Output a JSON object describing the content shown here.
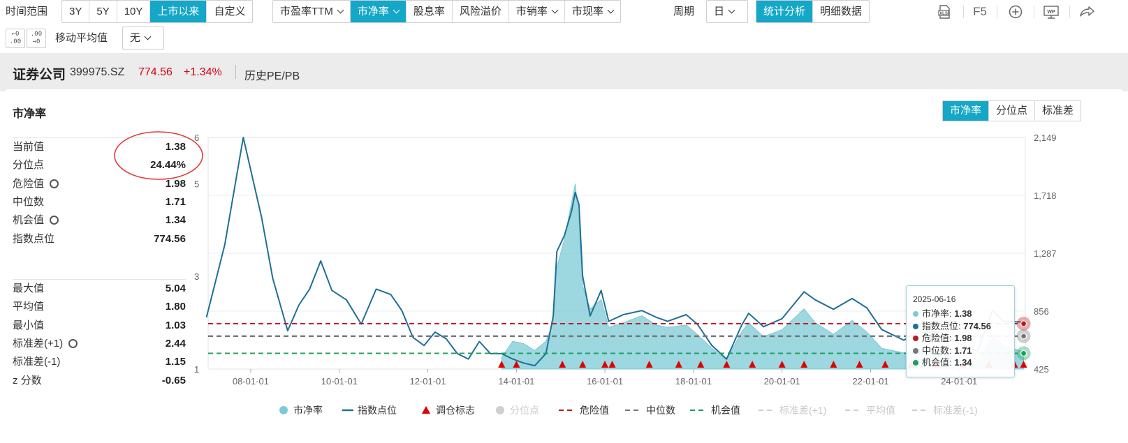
{
  "toolbar": {
    "range_label": "时间范围",
    "range_buttons": [
      "3Y",
      "5Y",
      "10Y",
      "上市以来",
      "自定义"
    ],
    "range_active": "上市以来",
    "metric_buttons": [
      "市盈率TTM",
      "市净率",
      "股息率",
      "风险溢价",
      "市销率",
      "市现率"
    ],
    "metric_active": "市净率",
    "period_label": "周期",
    "period_value": "日",
    "view_buttons": [
      "统计分析",
      "明细数据"
    ],
    "view_active": "统计分析",
    "right_icons": [
      "xls-export-icon",
      "f5-refresh",
      "add-circle-icon",
      "wp-icon",
      "share-icon"
    ],
    "f5_label": "F5",
    "wp_label": "WP",
    "ma_label": "移动平均值",
    "ma_value": "无"
  },
  "header": {
    "name": "证券公司",
    "code": "399975.SZ",
    "price": "774.56",
    "change": "+1.34%",
    "link": "历史PE/PB"
  },
  "panel": {
    "title": "市净率",
    "tabs": [
      "市净率",
      "分位点",
      "标准差"
    ],
    "tab_active": "市净率"
  },
  "stats_top": [
    {
      "label": "当前值",
      "value": "1.38",
      "gear": false
    },
    {
      "label": "分位点",
      "value": "24.44%",
      "gear": false
    },
    {
      "label": "危险值",
      "value": "1.98",
      "gear": true
    },
    {
      "label": "中位数",
      "value": "1.71",
      "gear": false
    },
    {
      "label": "机会值",
      "value": "1.34",
      "gear": true
    },
    {
      "label": "指数点位",
      "value": "774.56",
      "gear": false
    }
  ],
  "stats_bottom": [
    {
      "label": "最大值",
      "value": "5.04",
      "gear": false
    },
    {
      "label": "平均值",
      "value": "1.80",
      "gear": false
    },
    {
      "label": "最小值",
      "value": "1.03",
      "gear": false
    },
    {
      "label": "标准差(+1)",
      "value": "2.44",
      "gear": true
    },
    {
      "label": "标准差(-1)",
      "value": "1.15",
      "gear": false
    },
    {
      "label": "z 分数",
      "value": "-0.65",
      "gear": false
    }
  ],
  "tooltip": {
    "date": "2025-06-16",
    "rows": [
      {
        "label": "市净率: ",
        "value": "1.38",
        "color": "#7ccad6"
      },
      {
        "label": "指数点位: ",
        "value": "774.56",
        "color": "#1f6f97"
      },
      {
        "label": "危险值: ",
        "value": "1.98",
        "color": "#c0161c"
      },
      {
        "label": "中位数: ",
        "value": "1.71",
        "color": "#777777"
      },
      {
        "label": "机会值: ",
        "value": "1.34",
        "color": "#18a05a"
      }
    ]
  },
  "legend": [
    {
      "label": "市净率",
      "kind": "dot",
      "color": "#7ccad6",
      "enabled": true
    },
    {
      "label": "指数点位",
      "kind": "line",
      "color": "#1f6f97",
      "enabled": true
    },
    {
      "label": "调仓标志",
      "kind": "triangle",
      "color": "#e00000",
      "enabled": true
    },
    {
      "label": "分位点",
      "kind": "dot",
      "color": "#c8c8c8",
      "enabled": false
    },
    {
      "label": "危险值",
      "kind": "dash",
      "color": "#c0161c",
      "enabled": true
    },
    {
      "label": "中位数",
      "kind": "dash",
      "color": "#777777",
      "enabled": true
    },
    {
      "label": "机会值",
      "kind": "dash",
      "color": "#18a05a",
      "enabled": true
    },
    {
      "label": "标准差(+1)",
      "kind": "dash",
      "color": "#d0d0d0",
      "enabled": false
    },
    {
      "label": "平均值",
      "kind": "dash",
      "color": "#d0d0d0",
      "enabled": false
    },
    {
      "label": "标准差(-1)",
      "kind": "dash",
      "color": "#d0d0d0",
      "enabled": false
    }
  ],
  "colors": {
    "accent": "#14a7c7",
    "price_red": "#d9000f",
    "pb_fill": "#7ccad6",
    "index_line": "#1f6f97",
    "danger": "#c0161c",
    "median": "#777777",
    "opportunity": "#18a05a",
    "signal": "#e00000"
  },
  "chart_data": {
    "type": "area",
    "title": "",
    "x_tick_labels": [
      "08-01-01",
      "10-01-01",
      "12-01-01",
      "14-01-01",
      "16-01-01",
      "18-01-01",
      "20-01-01",
      "22-01-01",
      "24-01-01"
    ],
    "y_left_ticks": [
      "1",
      "3",
      "5",
      "6"
    ],
    "y_right_ticks": [
      "425",
      "856",
      "1,287",
      "1,718",
      "2,149"
    ],
    "ylim_left": [
      1,
      6
    ],
    "ylim_right": [
      425,
      2149
    ],
    "reference_lines": {
      "危险值": 1.98,
      "中位数": 1.71,
      "机会值": 1.34
    },
    "pb_series": {
      "name": "市净率",
      "points": [
        [
          "2013-09-01",
          1.25
        ],
        [
          "2013-12-01",
          1.6
        ],
        [
          "2014-03-01",
          1.55
        ],
        [
          "2014-06-01",
          1.4
        ],
        [
          "2014-09-01",
          1.6
        ],
        [
          "2014-11-01",
          2.0
        ],
        [
          "2014-12-01",
          3.2
        ],
        [
          "2015-02-01",
          3.8
        ],
        [
          "2015-04-01",
          4.6
        ],
        [
          "2015-05-01",
          5.0
        ],
        [
          "2015-06-01",
          4.2
        ],
        [
          "2015-07-01",
          2.8
        ],
        [
          "2015-09-01",
          2.3
        ],
        [
          "2015-12-01",
          2.5
        ],
        [
          "2016-02-01",
          1.9
        ],
        [
          "2016-06-01",
          2.0
        ],
        [
          "2016-11-01",
          2.15
        ],
        [
          "2017-03-01",
          1.95
        ],
        [
          "2017-06-01",
          1.9
        ],
        [
          "2017-11-01",
          1.95
        ],
        [
          "2018-02-01",
          1.75
        ],
        [
          "2018-06-01",
          1.45
        ],
        [
          "2018-10-01",
          1.2
        ],
        [
          "2019-02-01",
          1.8
        ],
        [
          "2019-04-01",
          2.0
        ],
        [
          "2019-08-01",
          1.7
        ],
        [
          "2020-01-01",
          1.85
        ],
        [
          "2020-07-01",
          2.3
        ],
        [
          "2020-10-01",
          2.0
        ],
        [
          "2021-03-01",
          1.75
        ],
        [
          "2021-08-01",
          2.05
        ],
        [
          "2021-12-01",
          1.8
        ],
        [
          "2022-04-01",
          1.45
        ],
        [
          "2022-10-01",
          1.35
        ],
        [
          "2023-02-01",
          1.45
        ],
        [
          "2023-08-01",
          1.4
        ],
        [
          "2024-02-01",
          1.15
        ],
        [
          "2024-06-01",
          1.15
        ],
        [
          "2024-10-01",
          1.75
        ],
        [
          "2025-01-01",
          1.5
        ],
        [
          "2025-06-16",
          1.38
        ]
      ]
    },
    "index_series": {
      "name": "指数点位",
      "points": [
        [
          "2007-01-01",
          810
        ],
        [
          "2007-06-01",
          1350
        ],
        [
          "2007-11-01",
          2149
        ],
        [
          "2008-04-01",
          1550
        ],
        [
          "2008-07-01",
          1100
        ],
        [
          "2008-11-01",
          710
        ],
        [
          "2009-02-01",
          900
        ],
        [
          "2009-05-01",
          1020
        ],
        [
          "2009-08-01",
          1230
        ],
        [
          "2009-11-01",
          1010
        ],
        [
          "2010-03-01",
          940
        ],
        [
          "2010-07-01",
          760
        ],
        [
          "2010-11-01",
          1020
        ],
        [
          "2011-03-01",
          980
        ],
        [
          "2011-06-01",
          860
        ],
        [
          "2011-09-01",
          660
        ],
        [
          "2011-12-01",
          600
        ],
        [
          "2012-03-01",
          700
        ],
        [
          "2012-06-01",
          650
        ],
        [
          "2012-09-01",
          540
        ],
        [
          "2012-12-01",
          500
        ],
        [
          "2013-03-01",
          630
        ],
        [
          "2013-06-01",
          540
        ],
        [
          "2013-09-01",
          540
        ],
        [
          "2013-12-01",
          500
        ],
        [
          "2014-03-01",
          470
        ],
        [
          "2014-06-01",
          450
        ],
        [
          "2014-09-01",
          540
        ],
        [
          "2014-11-01",
          820
        ],
        [
          "2014-12-01",
          1300
        ],
        [
          "2015-02-01",
          1420
        ],
        [
          "2015-04-01",
          1600
        ],
        [
          "2015-05-01",
          1740
        ],
        [
          "2015-06-01",
          1650
        ],
        [
          "2015-07-01",
          1120
        ],
        [
          "2015-09-01",
          820
        ],
        [
          "2015-12-01",
          1010
        ],
        [
          "2016-02-01",
          780
        ],
        [
          "2016-06-01",
          830
        ],
        [
          "2016-11-01",
          860
        ],
        [
          "2017-03-01",
          810
        ],
        [
          "2017-06-01",
          780
        ],
        [
          "2017-11-01",
          830
        ],
        [
          "2018-02-01",
          760
        ],
        [
          "2018-06-01",
          600
        ],
        [
          "2018-10-01",
          500
        ],
        [
          "2019-02-01",
          750
        ],
        [
          "2019-04-01",
          840
        ],
        [
          "2019-08-01",
          740
        ],
        [
          "2020-01-01",
          800
        ],
        [
          "2020-07-01",
          1000
        ],
        [
          "2020-10-01",
          940
        ],
        [
          "2021-03-01",
          870
        ],
        [
          "2021-08-01",
          950
        ],
        [
          "2021-12-01",
          880
        ],
        [
          "2022-04-01",
          720
        ],
        [
          "2022-10-01",
          640
        ],
        [
          "2023-02-01",
          700
        ],
        [
          "2023-08-01",
          700
        ],
        [
          "2024-02-01",
          600
        ],
        [
          "2024-06-01",
          560
        ],
        [
          "2024-10-01",
          860
        ],
        [
          "2025-01-01",
          780
        ],
        [
          "2025-06-16",
          774.56
        ]
      ]
    },
    "signal_marker_dates": [
      "2013-09-01",
      "2014-01-01",
      "2015-01-15",
      "2015-07-01",
      "2016-01-01",
      "2016-03-01",
      "2017-01-01",
      "2017-09-01",
      "2018-03-01",
      "2018-10-01",
      "2019-05-01",
      "2020-01-01",
      "2020-07-01",
      "2021-03-01",
      "2021-10-01",
      "2022-05-01",
      "2022-12-01",
      "2023-07-01",
      "2024-02-01",
      "2024-09-01",
      "2025-04-01",
      "2025-06-16"
    ],
    "legend_position": "bottom"
  }
}
